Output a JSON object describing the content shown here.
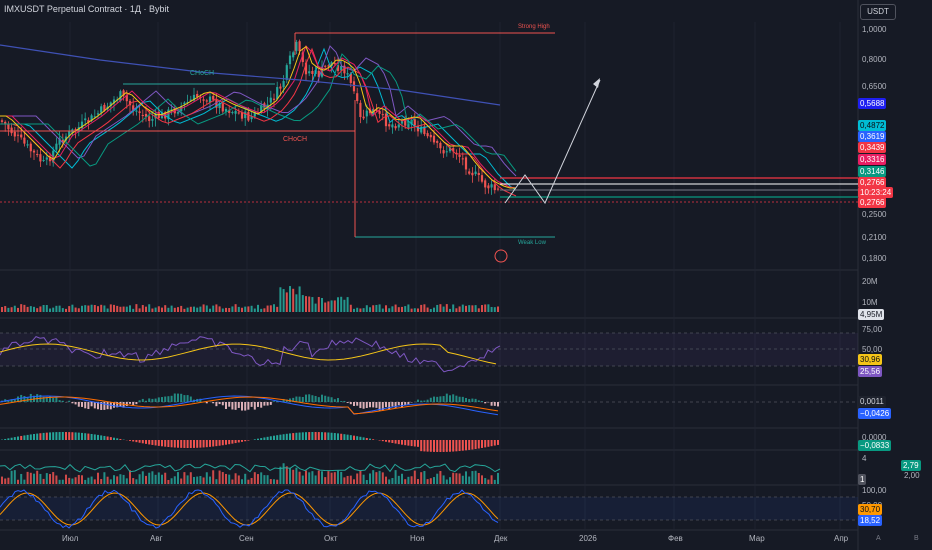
{
  "header": {
    "title": "IMXUSDT Perpetual Contract · 1Д · Bybit",
    "currency_button": "USDT"
  },
  "price_axis": {
    "ticks": [
      "1,0000",
      "0,8000",
      "0,6500",
      "0,2500",
      "0,2100",
      "0,1800"
    ],
    "labels": [
      {
        "text": "0,5688",
        "bg": "#1e1ef0",
        "fg": "#ffffff"
      },
      {
        "text": "0,4872",
        "bg": "#00bcd4",
        "fg": "#0b0e14"
      },
      {
        "text": "0,3619",
        "bg": "#2962ff",
        "fg": "#ffffff"
      },
      {
        "text": "0,3439",
        "bg": "#f23645",
        "fg": "#ffffff"
      },
      {
        "text": "0,3316",
        "bg": "#e91e63",
        "fg": "#ffffff"
      },
      {
        "text": "0,3146",
        "bg": "#089981",
        "fg": "#ffffff"
      },
      {
        "text": "0,2766",
        "bg": "#f23645",
        "fg": "#ffffff"
      },
      {
        "text": "10:23:24",
        "bg": "#f23645",
        "fg": "#ffffff"
      },
      {
        "text": "0,2766",
        "bg": "#f23645",
        "fg": "#ffffff"
      }
    ]
  },
  "annotations": {
    "choch_top": "CHoCH",
    "choch_mid": "CHoCH",
    "strong_high": "Strong High",
    "weak_low": "Weak Low"
  },
  "volume_pane": {
    "ticks": [
      "20M",
      "10M"
    ],
    "current_label": "4,95M"
  },
  "rsi_pane": {
    "ticks": [
      "75,00",
      "50,00"
    ],
    "labels": [
      {
        "text": "30,96",
        "bg": "#f5c518",
        "fg": "#0b0e14"
      },
      {
        "text": "25,56",
        "bg": "#7e57c2",
        "fg": "#ffffff"
      }
    ]
  },
  "macd_pane": {
    "labels": [
      {
        "text": "0,0011",
        "bg": "#1e222d",
        "fg": "#d1d4dc"
      },
      {
        "text": "−0,0426",
        "bg": "#2962ff",
        "fg": "#ffffff"
      }
    ]
  },
  "ao_pane": {
    "ticks": [
      "0,0000"
    ],
    "labels": [
      {
        "text": "−0,0833",
        "bg": "#089981",
        "fg": "#ffffff"
      }
    ]
  },
  "ratio_pane": {
    "ticks": [
      "4",
      "2,00"
    ],
    "labels": [
      {
        "text": "2,79",
        "bg": "#089981",
        "fg": "#ffffff"
      },
      {
        "text": "1",
        "bg": "#50535e",
        "fg": "#ffffff"
      }
    ]
  },
  "stoch_pane": {
    "ticks": [
      "100,00",
      "50,00"
    ],
    "labels": [
      {
        "text": "30,70",
        "bg": "#ff9800",
        "fg": "#0b0e14"
      },
      {
        "text": "18,52",
        "bg": "#2962ff",
        "fg": "#ffffff"
      }
    ]
  },
  "time_axis": {
    "ticks": [
      "Июл",
      "Авг",
      "Сен",
      "Окт",
      "Ноя",
      "Дек",
      "2026",
      "Фев",
      "Мар",
      "Апр"
    ]
  },
  "footer": {
    "auto": "A",
    "log": "B"
  },
  "colors": {
    "up": "#26a69a",
    "down": "#ef5350",
    "background": "#161a25"
  }
}
